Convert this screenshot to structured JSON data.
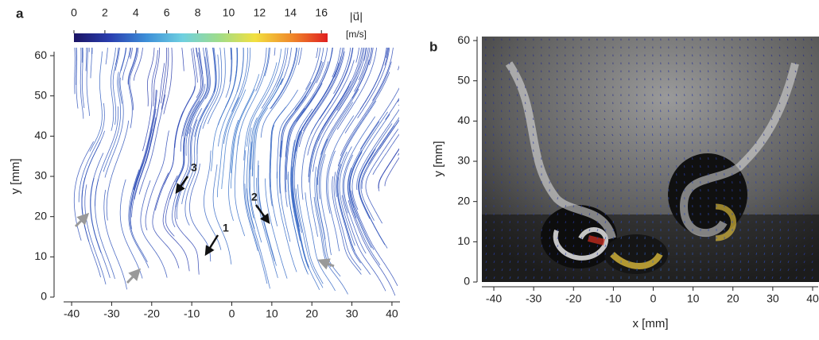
{
  "chart_data": [
    {
      "type": "streamline",
      "panel_label": "a",
      "ylabel": "y [mm]",
      "xlim": [
        -42,
        42
      ],
      "ylim": [
        0,
        61
      ],
      "xticks": [
        -40,
        -30,
        -20,
        -10,
        0,
        10,
        20,
        30,
        40
      ],
      "yticks": [
        0,
        10,
        20,
        30,
        40,
        50,
        60
      ],
      "colorbar": {
        "label": "|u⃗|",
        "unit": "[m/s]",
        "lim": [
          0,
          16.4
        ],
        "ticks": [
          0,
          2,
          4,
          6,
          8,
          10,
          12,
          14,
          16
        ],
        "colors": [
          "#1b1464",
          "#2a3fb0",
          "#3d8fd8",
          "#6fd0e0",
          "#9fdc8a",
          "#f2e040",
          "#f08a2a",
          "#e02020"
        ]
      },
      "annotations": [
        "1",
        "2",
        "3"
      ]
    },
    {
      "type": "vector",
      "panel_label": "b",
      "xlabel": "x [mm]",
      "ylabel": "y [mm]",
      "xlim": [
        -43,
        41.6
      ],
      "ylim": [
        0,
        61
      ],
      "xticks": [
        -40,
        -30,
        -20,
        -10,
        0,
        10,
        20,
        30,
        40
      ],
      "yticks": [
        0,
        10,
        20,
        30,
        40,
        50,
        60
      ]
    }
  ]
}
